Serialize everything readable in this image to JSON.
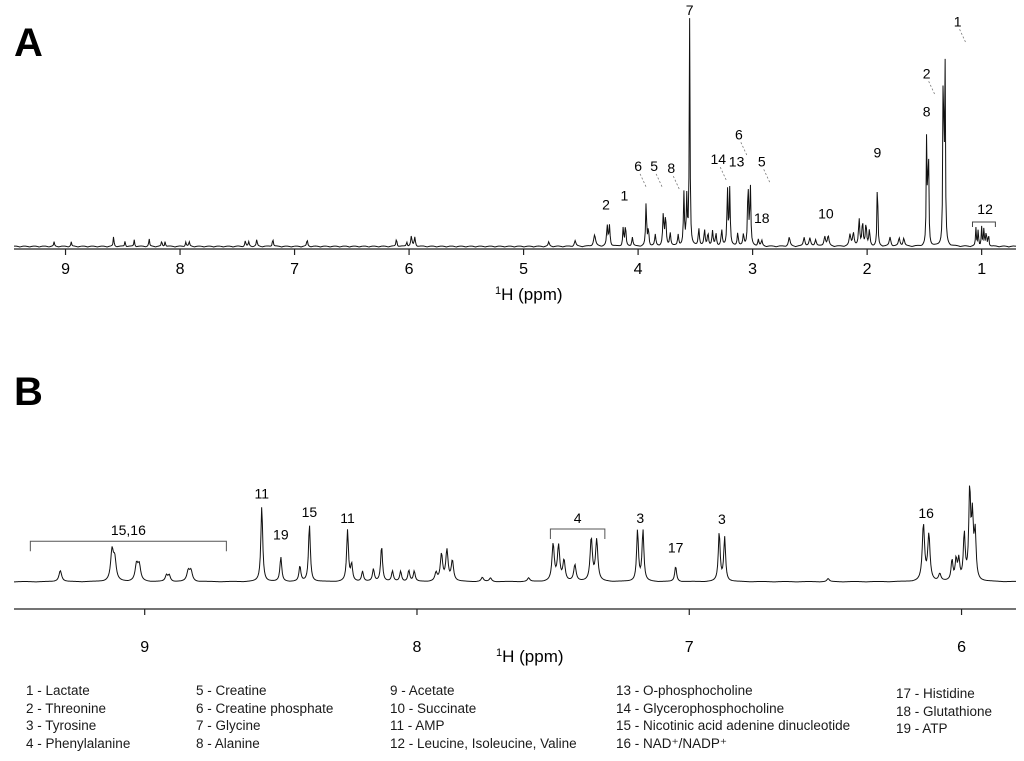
{
  "panels": [
    {
      "letter": "A",
      "xlabel_sup": "1",
      "xlabel": "H (ppm)",
      "xlim": [
        9.45,
        0.7
      ],
      "ticks": [
        9,
        8,
        7,
        6,
        5,
        4,
        3,
        2,
        1
      ],
      "peaks": [
        {
          "ppm": 9.1,
          "h": 0.02,
          "w": 0.004
        },
        {
          "ppm": 8.95,
          "h": 0.02,
          "w": 0.004
        },
        {
          "ppm": 8.58,
          "h": 0.045,
          "w": 0.004
        },
        {
          "ppm": 8.48,
          "h": 0.025,
          "w": 0.004
        },
        {
          "ppm": 8.4,
          "h": 0.03,
          "w": 0.004
        },
        {
          "ppm": 8.27,
          "h": 0.035,
          "w": 0.004
        },
        {
          "ppm": 8.16,
          "h": 0.025,
          "w": 0.004
        },
        {
          "ppm": 8.13,
          "h": 0.025,
          "w": 0.004
        },
        {
          "ppm": 7.95,
          "h": 0.02,
          "w": 0.005
        },
        {
          "ppm": 7.92,
          "h": 0.02,
          "w": 0.005
        },
        {
          "ppm": 7.43,
          "h": 0.025,
          "w": 0.005
        },
        {
          "ppm": 7.4,
          "h": 0.02,
          "w": 0.005
        },
        {
          "ppm": 7.33,
          "h": 0.03,
          "w": 0.005
        },
        {
          "ppm": 7.19,
          "h": 0.035,
          "w": 0.005
        },
        {
          "ppm": 6.89,
          "h": 0.03,
          "w": 0.005
        },
        {
          "ppm": 6.11,
          "h": 0.035,
          "w": 0.005
        },
        {
          "ppm": 6.02,
          "h": 0.02,
          "w": 0.005
        },
        {
          "ppm": 5.98,
          "h": 0.045,
          "w": 0.006
        },
        {
          "ppm": 5.95,
          "h": 0.04,
          "w": 0.006
        },
        {
          "ppm": 4.78,
          "h": 0.02,
          "w": 0.006
        },
        {
          "ppm": 4.55,
          "h": 0.025,
          "w": 0.008
        },
        {
          "ppm": 4.38,
          "h": 0.05,
          "w": 0.01
        },
        {
          "ppm": 4.27,
          "h": 0.09,
          "w": 0.006
        },
        {
          "ppm": 4.25,
          "h": 0.09,
          "w": 0.006
        },
        {
          "ppm": 4.13,
          "h": 0.085,
          "w": 0.005
        },
        {
          "ppm": 4.11,
          "h": 0.095,
          "w": 0.005
        },
        {
          "ppm": 4.05,
          "h": 0.04,
          "w": 0.006
        },
        {
          "ppm": 3.93,
          "h": 0.195,
          "w": 0.005
        },
        {
          "ppm": 3.91,
          "h": 0.08,
          "w": 0.005
        },
        {
          "ppm": 3.85,
          "h": 0.05,
          "w": 0.006
        },
        {
          "ppm": 3.78,
          "h": 0.14,
          "w": 0.006
        },
        {
          "ppm": 3.76,
          "h": 0.13,
          "w": 0.006
        },
        {
          "ppm": 3.72,
          "h": 0.06,
          "w": 0.006
        },
        {
          "ppm": 3.65,
          "h": 0.05,
          "w": 0.006
        },
        {
          "ppm": 3.6,
          "h": 0.23,
          "w": 0.005
        },
        {
          "ppm": 3.575,
          "h": 0.21,
          "w": 0.005
        },
        {
          "ppm": 3.55,
          "h": 1.0,
          "w": 0.004
        },
        {
          "ppm": 3.47,
          "h": 0.08,
          "w": 0.006
        },
        {
          "ppm": 3.42,
          "h": 0.07,
          "w": 0.006
        },
        {
          "ppm": 3.39,
          "h": 0.06,
          "w": 0.006
        },
        {
          "ppm": 3.35,
          "h": 0.065,
          "w": 0.006
        },
        {
          "ppm": 3.32,
          "h": 0.055,
          "w": 0.006
        },
        {
          "ppm": 3.27,
          "h": 0.07,
          "w": 0.006
        },
        {
          "ppm": 3.22,
          "h": 0.26,
          "w": 0.005
        },
        {
          "ppm": 3.2,
          "h": 0.25,
          "w": 0.005
        },
        {
          "ppm": 3.13,
          "h": 0.06,
          "w": 0.006
        },
        {
          "ppm": 3.08,
          "h": 0.05,
          "w": 0.006
        },
        {
          "ppm": 3.04,
          "h": 0.29,
          "w": 0.005
        },
        {
          "ppm": 3.02,
          "h": 0.27,
          "w": 0.005
        },
        {
          "ppm": 2.95,
          "h": 0.03,
          "w": 0.006
        },
        {
          "ppm": 2.92,
          "h": 0.025,
          "w": 0.006
        },
        {
          "ppm": 2.68,
          "h": 0.04,
          "w": 0.008
        },
        {
          "ppm": 2.55,
          "h": 0.04,
          "w": 0.008
        },
        {
          "ppm": 2.5,
          "h": 0.035,
          "w": 0.008
        },
        {
          "ppm": 2.45,
          "h": 0.03,
          "w": 0.008
        },
        {
          "ppm": 2.37,
          "h": 0.045,
          "w": 0.008
        },
        {
          "ppm": 2.34,
          "h": 0.045,
          "w": 0.008
        },
        {
          "ppm": 2.15,
          "h": 0.05,
          "w": 0.008
        },
        {
          "ppm": 2.12,
          "h": 0.06,
          "w": 0.008
        },
        {
          "ppm": 2.07,
          "h": 0.12,
          "w": 0.006
        },
        {
          "ppm": 2.04,
          "h": 0.11,
          "w": 0.006
        },
        {
          "ppm": 2.01,
          "h": 0.1,
          "w": 0.006
        },
        {
          "ppm": 1.98,
          "h": 0.07,
          "w": 0.006
        },
        {
          "ppm": 1.91,
          "h": 0.33,
          "w": 0.004
        },
        {
          "ppm": 1.8,
          "h": 0.04,
          "w": 0.008
        },
        {
          "ppm": 1.72,
          "h": 0.035,
          "w": 0.008
        },
        {
          "ppm": 1.68,
          "h": 0.035,
          "w": 0.008
        },
        {
          "ppm": 1.48,
          "h": 0.51,
          "w": 0.004
        },
        {
          "ppm": 1.465,
          "h": 0.5,
          "w": 0.004
        },
        {
          "ppm": 1.335,
          "h": 0.93,
          "w": 0.004
        },
        {
          "ppm": 1.32,
          "h": 0.85,
          "w": 0.004
        },
        {
          "ppm": 1.05,
          "h": 0.08,
          "w": 0.004
        },
        {
          "ppm": 1.03,
          "h": 0.075,
          "w": 0.004
        },
        {
          "ppm": 1.0,
          "h": 0.085,
          "w": 0.004
        },
        {
          "ppm": 0.98,
          "h": 0.08,
          "w": 0.004
        },
        {
          "ppm": 0.96,
          "h": 0.07,
          "w": 0.004
        },
        {
          "ppm": 0.94,
          "h": 0.06,
          "w": 0.004
        }
      ],
      "labels": [
        {
          "text": "7",
          "ppm": 3.55,
          "frac": 1.0,
          "leader": false
        },
        {
          "text": "1",
          "ppm": 1.21,
          "frac": 0.95,
          "leader": true
        },
        {
          "text": "2",
          "ppm": 1.48,
          "frac": 0.72,
          "leader": true
        },
        {
          "text": "8",
          "ppm": 1.48,
          "frac": 0.55,
          "leader": false
        },
        {
          "text": "9",
          "ppm": 1.91,
          "frac": 0.37,
          "leader": false
        },
        {
          "text": "6",
          "ppm": 3.12,
          "frac": 0.45,
          "leader": true
        },
        {
          "text": "5",
          "ppm": 2.92,
          "frac": 0.33,
          "leader": true
        },
        {
          "text": "14",
          "ppm": 3.3,
          "frac": 0.34,
          "leader": true
        },
        {
          "text": "13",
          "ppm": 3.14,
          "frac": 0.33,
          "leader": false
        },
        {
          "text": "18",
          "ppm": 2.92,
          "frac": 0.08,
          "leader": false
        },
        {
          "text": "10",
          "ppm": 2.36,
          "frac": 0.1,
          "leader": false
        },
        {
          "text": "12",
          "ppm": 0.97,
          "frac": 0.12,
          "leader": false
        },
        {
          "text": "6",
          "ppm": 4.0,
          "frac": 0.31,
          "leader": true
        },
        {
          "text": "5",
          "ppm": 3.86,
          "frac": 0.31,
          "leader": true
        },
        {
          "text": "8",
          "ppm": 3.71,
          "frac": 0.3,
          "leader": true
        },
        {
          "text": "2",
          "ppm": 4.28,
          "frac": 0.14,
          "leader": false
        },
        {
          "text": "1",
          "ppm": 4.12,
          "frac": 0.18,
          "leader": false
        }
      ]
    },
    {
      "letter": "B",
      "xlabel_sup": "1",
      "xlabel": "H (ppm)",
      "xlim": [
        9.48,
        5.8
      ],
      "ticks": [
        9,
        8,
        7,
        6
      ],
      "peaks": [
        {
          "ppm": 9.31,
          "h": 0.11,
          "w": 0.006
        },
        {
          "ppm": 9.12,
          "h": 0.29,
          "w": 0.006
        },
        {
          "ppm": 9.11,
          "h": 0.2,
          "w": 0.006
        },
        {
          "ppm": 9.03,
          "h": 0.16,
          "w": 0.006
        },
        {
          "ppm": 9.02,
          "h": 0.15,
          "w": 0.006
        },
        {
          "ppm": 8.92,
          "h": 0.06,
          "w": 0.005
        },
        {
          "ppm": 8.91,
          "h": 0.06,
          "w": 0.005
        },
        {
          "ppm": 8.84,
          "h": 0.1,
          "w": 0.006
        },
        {
          "ppm": 8.83,
          "h": 0.1,
          "w": 0.006
        },
        {
          "ppm": 8.57,
          "h": 0.74,
          "w": 0.004
        },
        {
          "ppm": 8.5,
          "h": 0.24,
          "w": 0.004
        },
        {
          "ppm": 8.43,
          "h": 0.15,
          "w": 0.004
        },
        {
          "ppm": 8.395,
          "h": 0.56,
          "w": 0.004
        },
        {
          "ppm": 8.255,
          "h": 0.5,
          "w": 0.004
        },
        {
          "ppm": 8.24,
          "h": 0.16,
          "w": 0.004
        },
        {
          "ppm": 8.2,
          "h": 0.1,
          "w": 0.004
        },
        {
          "ppm": 8.16,
          "h": 0.12,
          "w": 0.004
        },
        {
          "ppm": 8.13,
          "h": 0.35,
          "w": 0.004
        },
        {
          "ppm": 8.09,
          "h": 0.1,
          "w": 0.004
        },
        {
          "ppm": 8.06,
          "h": 0.1,
          "w": 0.004
        },
        {
          "ppm": 8.03,
          "h": 0.11,
          "w": 0.004
        },
        {
          "ppm": 8.01,
          "h": 0.1,
          "w": 0.004
        },
        {
          "ppm": 7.93,
          "h": 0.08,
          "w": 0.005
        },
        {
          "ppm": 7.91,
          "h": 0.26,
          "w": 0.005
        },
        {
          "ppm": 7.89,
          "h": 0.3,
          "w": 0.005
        },
        {
          "ppm": 7.87,
          "h": 0.2,
          "w": 0.005
        },
        {
          "ppm": 7.76,
          "h": 0.04,
          "w": 0.005
        },
        {
          "ppm": 7.73,
          "h": 0.035,
          "w": 0.005
        },
        {
          "ppm": 7.59,
          "h": 0.035,
          "w": 0.005
        },
        {
          "ppm": 7.5,
          "h": 0.36,
          "w": 0.005
        },
        {
          "ppm": 7.48,
          "h": 0.34,
          "w": 0.005
        },
        {
          "ppm": 7.46,
          "h": 0.2,
          "w": 0.005
        },
        {
          "ppm": 7.42,
          "h": 0.16,
          "w": 0.005
        },
        {
          "ppm": 7.36,
          "h": 0.42,
          "w": 0.005
        },
        {
          "ppm": 7.34,
          "h": 0.4,
          "w": 0.005
        },
        {
          "ppm": 7.19,
          "h": 0.5,
          "w": 0.004
        },
        {
          "ppm": 7.17,
          "h": 0.5,
          "w": 0.004
        },
        {
          "ppm": 7.05,
          "h": 0.15,
          "w": 0.004
        },
        {
          "ppm": 6.89,
          "h": 0.48,
          "w": 0.004
        },
        {
          "ppm": 6.87,
          "h": 0.43,
          "w": 0.004
        },
        {
          "ppm": 6.49,
          "h": 0.03,
          "w": 0.005
        },
        {
          "ppm": 6.14,
          "h": 0.55,
          "w": 0.005
        },
        {
          "ppm": 6.12,
          "h": 0.45,
          "w": 0.005
        },
        {
          "ppm": 6.08,
          "h": 0.07,
          "w": 0.005
        },
        {
          "ppm": 6.035,
          "h": 0.2,
          "w": 0.004
        },
        {
          "ppm": 6.02,
          "h": 0.2,
          "w": 0.004
        },
        {
          "ppm": 6.01,
          "h": 0.2,
          "w": 0.004
        },
        {
          "ppm": 5.99,
          "h": 0.45,
          "w": 0.004
        },
        {
          "ppm": 5.97,
          "h": 0.87,
          "w": 0.004
        },
        {
          "ppm": 5.96,
          "h": 0.58,
          "w": 0.004
        },
        {
          "ppm": 5.95,
          "h": 0.45,
          "w": 0.004
        }
      ],
      "labels": [
        {
          "text": "11",
          "ppm": 8.57,
          "frac": 0.76,
          "leader": false
        },
        {
          "text": "19",
          "ppm": 8.5,
          "frac": 0.36,
          "leader": false
        },
        {
          "text": "15",
          "ppm": 8.395,
          "frac": 0.58,
          "leader": false
        },
        {
          "text": "11",
          "ppm": 8.255,
          "frac": 0.52,
          "leader": false
        },
        {
          "text": "3",
          "ppm": 7.18,
          "frac": 0.52,
          "leader": false
        },
        {
          "text": "17",
          "ppm": 7.05,
          "frac": 0.23,
          "leader": false
        },
        {
          "text": "3",
          "ppm": 6.88,
          "frac": 0.51,
          "leader": false
        },
        {
          "text": "16",
          "ppm": 6.13,
          "frac": 0.57,
          "leader": false
        }
      ],
      "brackets": [
        {
          "text": "15,16",
          "from": 9.42,
          "to": 8.7,
          "frac": 0.4
        },
        {
          "text": "4",
          "from": 7.51,
          "to": 7.31,
          "frac": 0.52
        }
      ]
    }
  ],
  "legend": {
    "col1": [
      "1 - Lactate",
      "2 - Threonine",
      "3 - Tyrosine",
      "4 - Phenylalanine"
    ],
    "col2": [
      "5 - Creatine",
      "6 - Creatine phosphate",
      "7 - Glycine",
      "8 - Alanine"
    ],
    "col3": [
      "9 - Acetate",
      "10 - Succinate",
      "11 - AMP",
      "12 - Leucine, Isoleucine, Valine"
    ],
    "col4": [
      "13 - O-phosphocholine",
      "14 - Glycerophosphocholine",
      "15 - Nicotinic acid adenine dinucleotide",
      "16 - NAD⁺/NADP⁺"
    ],
    "col5": [
      "17 - Histidine",
      "18 - Glutathione",
      "19 - ATP"
    ]
  },
  "chart_data": [
    {
      "type": "line",
      "title": "A",
      "xlabel": "1H (ppm)",
      "ylabel": "",
      "x_ticks": [
        9,
        8,
        7,
        6,
        5,
        4,
        3,
        2,
        1
      ],
      "xlim": [
        9.45,
        0.7
      ],
      "peak_assignments": [
        {
          "label": "1",
          "ppm": [
            1.33,
            4.11
          ],
          "metabolite": "Lactate"
        },
        {
          "label": "2",
          "ppm": [
            1.32,
            4.26
          ],
          "metabolite": "Threonine"
        },
        {
          "label": "5",
          "ppm": [
            3.03,
            3.93
          ],
          "metabolite": "Creatine"
        },
        {
          "label": "6",
          "ppm": [
            3.04,
            3.94
          ],
          "metabolite": "Creatine phosphate"
        },
        {
          "label": "7",
          "ppm": [
            3.55
          ],
          "metabolite": "Glycine"
        },
        {
          "label": "8",
          "ppm": [
            1.48,
            3.78
          ],
          "metabolite": "Alanine"
        },
        {
          "label": "9",
          "ppm": [
            1.91
          ],
          "metabolite": "Acetate"
        },
        {
          "label": "10",
          "ppm": [
            2.37
          ],
          "metabolite": "Succinate"
        },
        {
          "label": "12",
          "ppm": [
            0.97
          ],
          "metabolite": "Leucine, Isoleucine, Valine"
        },
        {
          "label": "13",
          "ppm": [
            3.21
          ],
          "metabolite": "O-phosphocholine"
        },
        {
          "label": "14",
          "ppm": [
            3.22
          ],
          "metabolite": "Glycerophosphocholine"
        },
        {
          "label": "18",
          "ppm": [
            2.94
          ],
          "metabolite": "Glutathione"
        }
      ]
    },
    {
      "type": "line",
      "title": "B",
      "xlabel": "1H (ppm)",
      "ylabel": "",
      "x_ticks": [
        9,
        8,
        7,
        6
      ],
      "xlim": [
        9.48,
        5.8
      ],
      "peak_assignments": [
        {
          "label": "3",
          "ppm": [
            7.18,
            6.88
          ],
          "metabolite": "Tyrosine"
        },
        {
          "label": "4",
          "ppm": [
            7.31,
            7.51
          ],
          "metabolite": "Phenylalanine"
        },
        {
          "label": "11",
          "ppm": [
            8.57,
            8.255
          ],
          "metabolite": "AMP"
        },
        {
          "label": "15",
          "ppm": [
            8.395
          ],
          "metabolite": "Nicotinic acid adenine dinucleotide"
        },
        {
          "label": "15,16",
          "ppm": [
            8.7,
            9.42
          ],
          "metabolite": "Nicotinic acid adenine dinucleotide, NAD+/NADP+"
        },
        {
          "label": "16",
          "ppm": [
            6.13
          ],
          "metabolite": "NAD+/NADP+"
        },
        {
          "label": "17",
          "ppm": [
            7.05
          ],
          "metabolite": "Histidine"
        },
        {
          "label": "19",
          "ppm": [
            8.5
          ],
          "metabolite": "ATP"
        }
      ]
    }
  ]
}
